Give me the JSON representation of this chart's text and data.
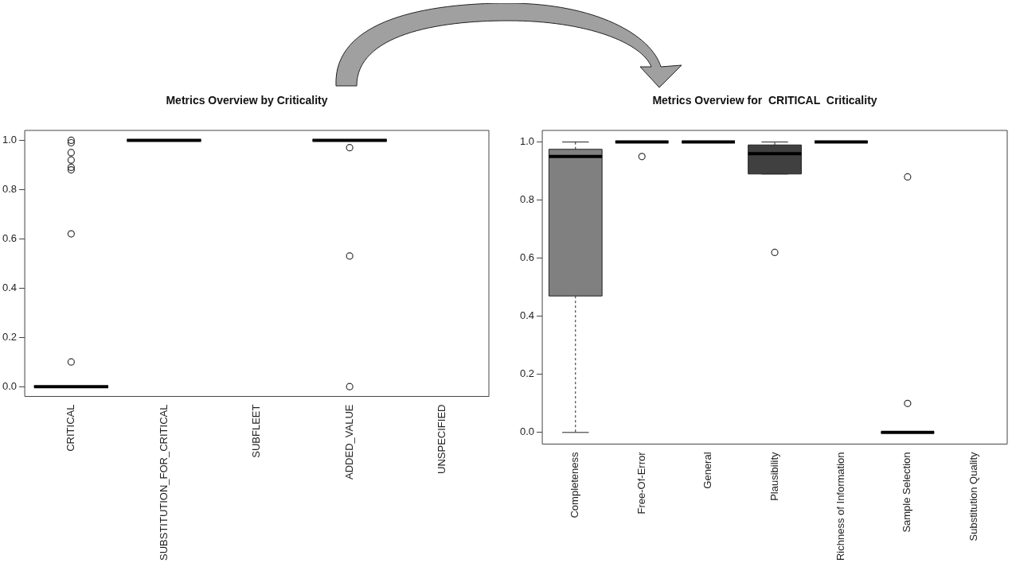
{
  "chart_data": [
    {
      "type": "box",
      "title": "Metrics Overview by Criticality",
      "categories": [
        "CRITICAL",
        "SUBSTITUTION_FOR_CRITICAL",
        "SUBFLEET",
        "ADDED_VALUE",
        "UNSPECIFIED"
      ],
      "boxes": [
        {
          "low": 0,
          "q1": 0,
          "median": 0,
          "q3": 0,
          "high": 0,
          "outliers": [
            1.0,
            0.99,
            0.95,
            0.92,
            0.89,
            0.88,
            0.62,
            0.1
          ]
        },
        {
          "low": 1,
          "q1": 1,
          "median": 1,
          "q3": 1,
          "high": 1
        },
        null,
        {
          "low": 1,
          "q1": 1,
          "median": 1,
          "q3": 1,
          "high": 1,
          "outliers": [
            0.97,
            0.53,
            0.0
          ]
        },
        null
      ],
      "colors": [
        null,
        null,
        null,
        null,
        null
      ],
      "ylim": [
        -0.04,
        1.04
      ],
      "yticks": [
        {
          "value": 0,
          "label": "0.0"
        },
        {
          "value": 0.2,
          "label": "0.2"
        },
        {
          "value": 0.4,
          "label": "0.4"
        },
        {
          "value": 0.6,
          "label": "0.6"
        },
        {
          "value": 0.8,
          "label": "0.8"
        },
        {
          "value": 1,
          "label": "1.0"
        }
      ],
      "grid": false,
      "legend": false
    },
    {
      "type": "box",
      "title": "Metrics Overview for  CRITICAL  Criticality",
      "categories": [
        "Completeness",
        "Free-Of-Error",
        "General",
        "Plausibility",
        "Richness of Information",
        "Sample Selection",
        "Substitution Quality"
      ],
      "boxes": [
        {
          "low": 0,
          "q1": 0.47,
          "median": 0.95,
          "q3": 0.975,
          "high": 1.0
        },
        {
          "low": 1,
          "q1": 1,
          "median": 1,
          "q3": 1,
          "high": 1,
          "outliers": [
            0.95
          ]
        },
        {
          "low": 1,
          "q1": 1,
          "median": 1,
          "q3": 1,
          "high": 1
        },
        {
          "low": 0.89,
          "q1": 0.89,
          "median": 0.96,
          "q3": 0.99,
          "high": 1.0,
          "outliers": [
            0.62
          ]
        },
        {
          "low": 1,
          "q1": 1,
          "median": 1,
          "q3": 1,
          "high": 1
        },
        {
          "low": 0,
          "q1": 0,
          "median": 0,
          "q3": 0,
          "high": 0,
          "outliers": [
            0.88,
            0.1
          ]
        },
        null
      ],
      "colors": [
        "#808080",
        null,
        null,
        "#404040",
        null,
        null,
        null
      ],
      "ylim": [
        -0.04,
        1.04
      ],
      "yticks": [
        {
          "value": 0,
          "label": "0.0"
        },
        {
          "value": 0.2,
          "label": "0.2"
        },
        {
          "value": 0.4,
          "label": "0.4"
        },
        {
          "value": 0.6,
          "label": "0.6"
        },
        {
          "value": 0.8,
          "label": "0.8"
        },
        {
          "value": 1,
          "label": "1.0"
        }
      ],
      "grid": false,
      "legend": false
    }
  ]
}
